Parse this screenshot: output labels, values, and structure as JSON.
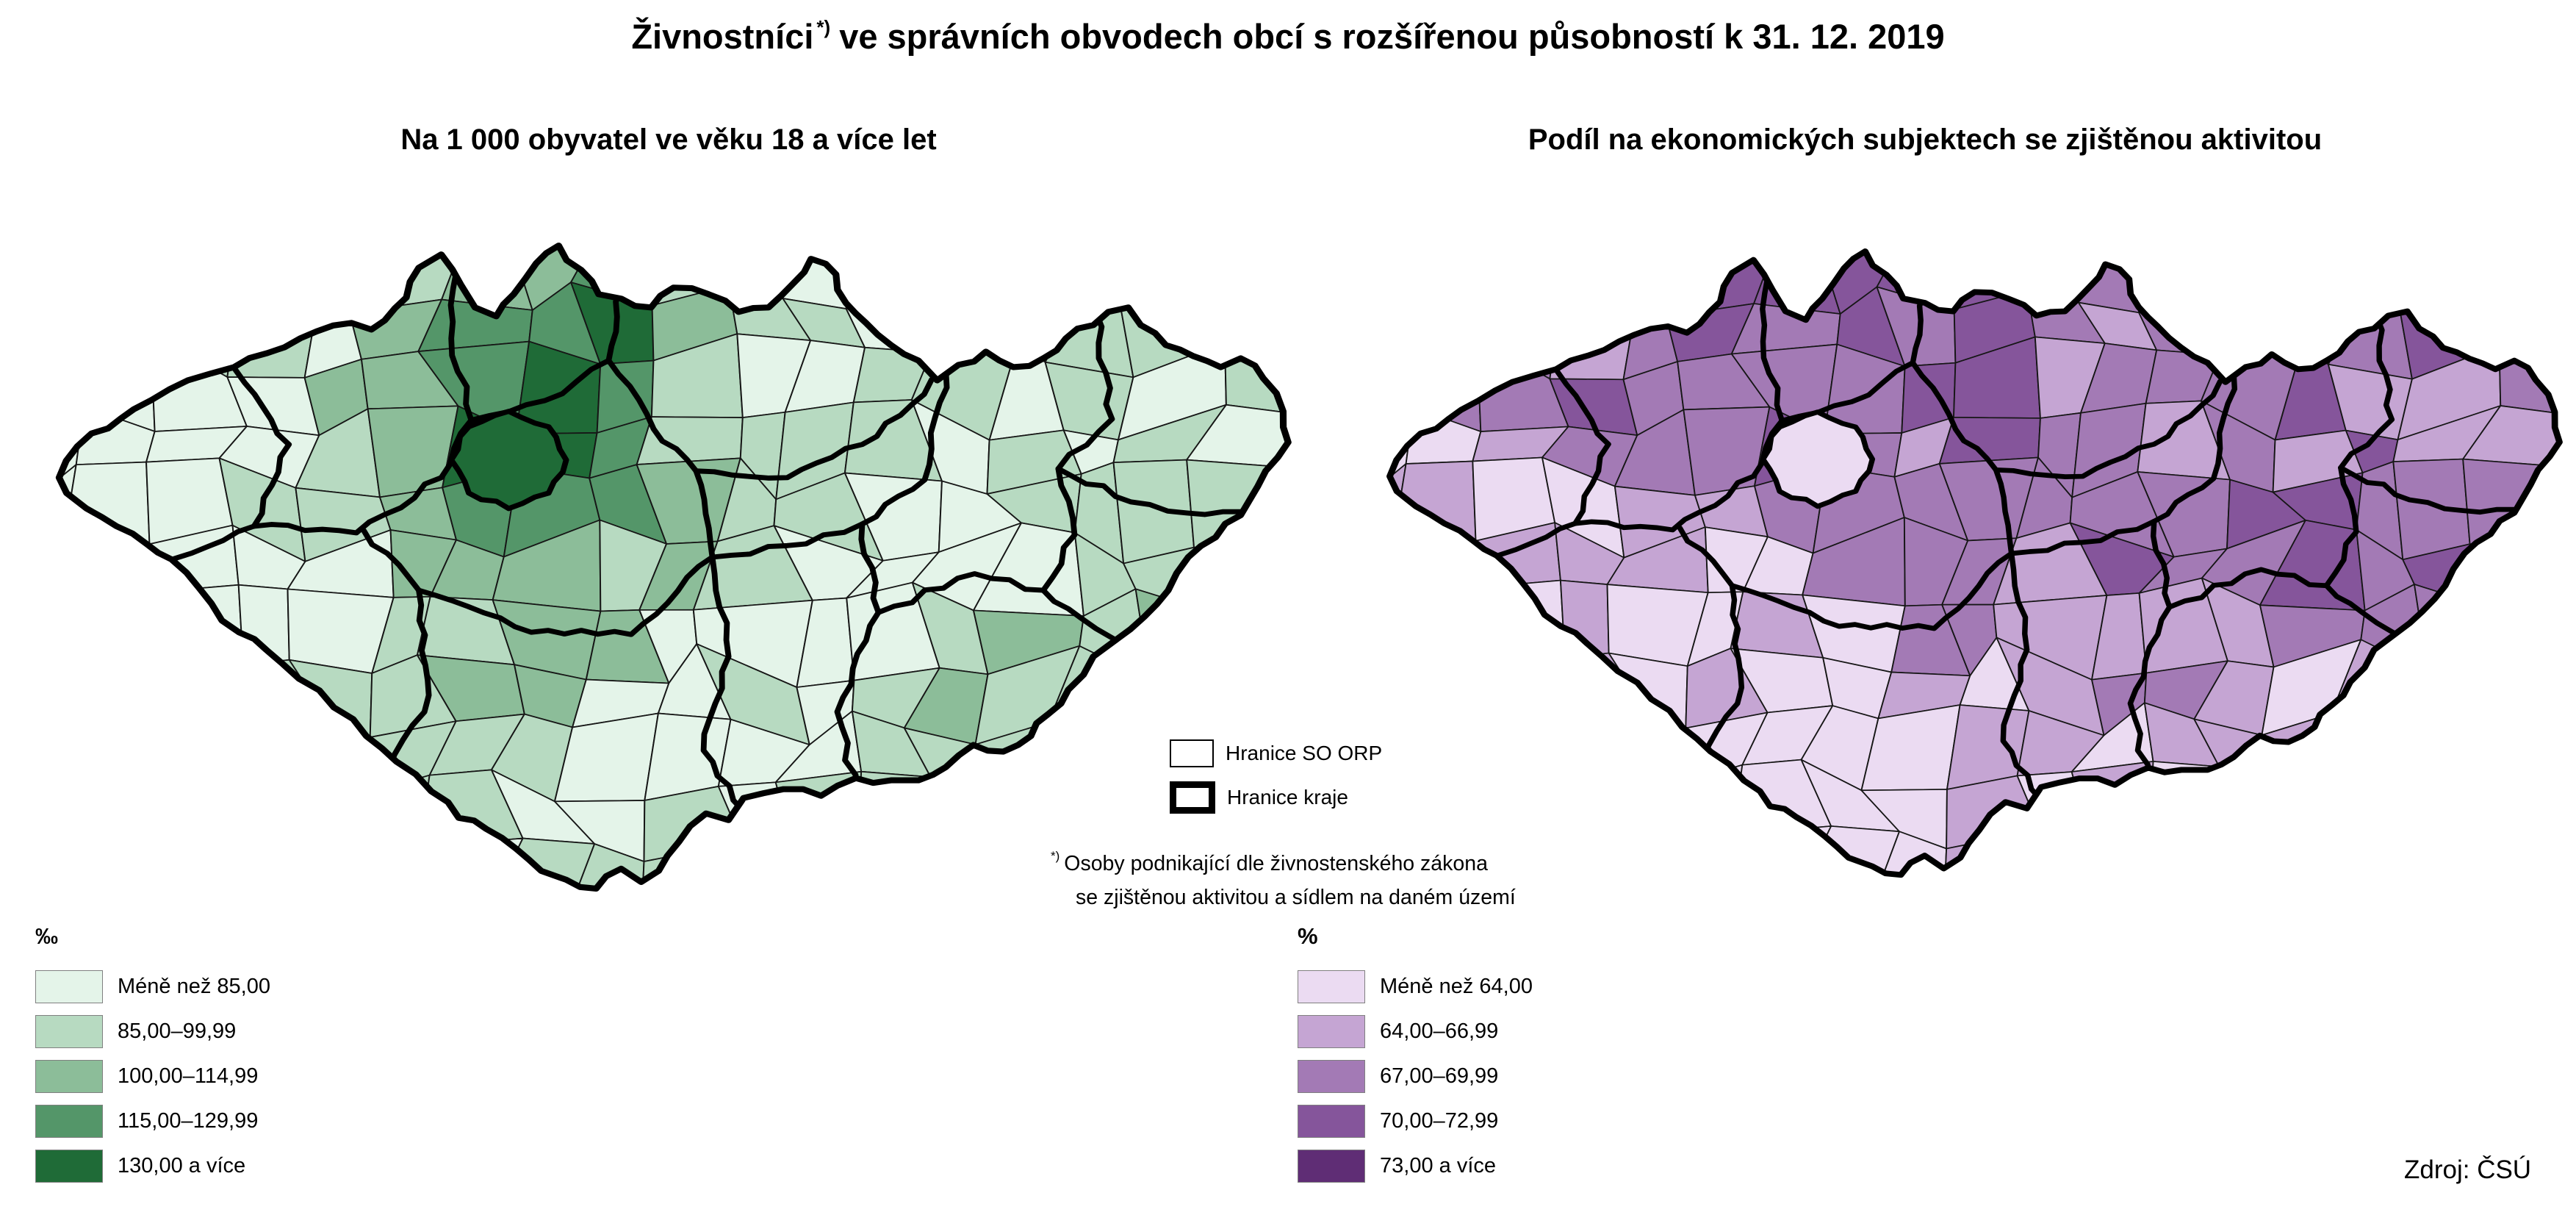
{
  "title": {
    "main": "Živnostníci",
    "sup": "*)",
    "rest": "ve správních obvodech obcí s rozšířenou působností k 31. 12. 2019"
  },
  "maps": {
    "left": {
      "subtitle": "Na 1 000 obyvatel ve věku 18 a více let",
      "unit": "‰",
      "classes": [
        {
          "label": "Méně než 85,00",
          "color": "#E4F4E9"
        },
        {
          "label": "85,00–99,99",
          "color": "#B7DAC1"
        },
        {
          "label": "100,00–114,99",
          "color": "#8CBD99"
        },
        {
          "label": "115,00–129,99",
          "color": "#549669"
        },
        {
          "label": "130,00 a více",
          "color": "#1F6B37"
        }
      ]
    },
    "right": {
      "subtitle": "Podíl na ekonomických subjektech se zjištěnou aktivitou",
      "unit": "%",
      "classes": [
        {
          "label": "Méně než 64,00",
          "color": "#EBDBF2"
        },
        {
          "label": "64,00–66,99",
          "color": "#C5A5D3"
        },
        {
          "label": "67,00–69,99",
          "color": "#A37AB5"
        },
        {
          "label": "70,00–72,99",
          "color": "#85559B"
        },
        {
          "label": "73,00 a více",
          "color": "#5F2D75"
        }
      ]
    }
  },
  "boundary_legend": {
    "items": [
      {
        "label": "Hranice SO ORP",
        "style": "thin"
      },
      {
        "label": "Hranice kraje",
        "style": "thick"
      }
    ]
  },
  "footnote": {
    "sup": "*)",
    "line1": "Osoby podnikající dle živnostenského zákona",
    "line2": "se zjištěnou aktivitou a sídlem na daném území"
  },
  "source": "Zdroj: ČSÚ",
  "map_style": {
    "state_border_color": "#000000",
    "kraj_border_color": "#000000",
    "orp_border_color": "#161616"
  }
}
